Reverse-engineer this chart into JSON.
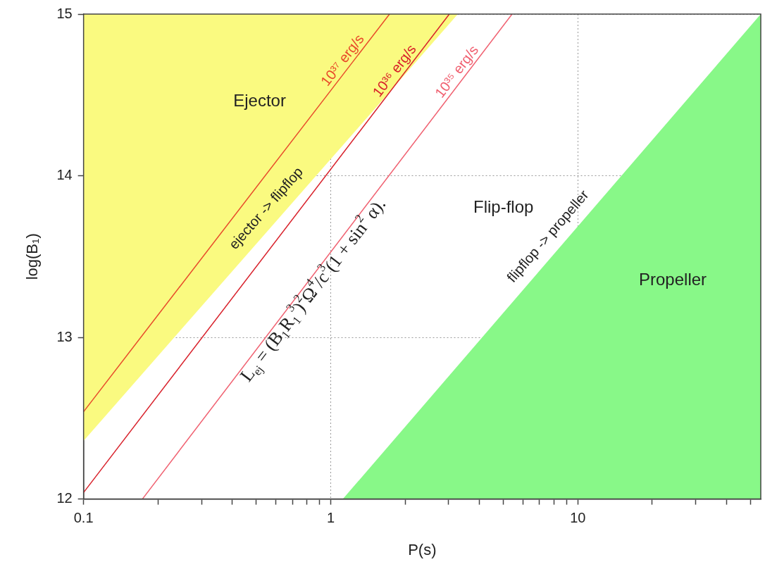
{
  "chart_data": {
    "type": "line",
    "xlabel": "P(s)",
    "ylabel": "log(B₁)",
    "log": "x",
    "grid": true,
    "legend": false,
    "xlim": [
      0.1,
      55
    ],
    "ylim": [
      12,
      15
    ],
    "xticks": [
      0.1,
      {
        "value": 0.2,
        "label": null
      },
      {
        "value": 0.3,
        "label": null
      },
      {
        "value": 0.4,
        "label": null
      },
      {
        "value": 0.5,
        "label": null
      },
      {
        "value": 0.6,
        "label": null
      },
      {
        "value": 0.7,
        "label": null
      },
      {
        "value": 0.8,
        "label": null
      },
      {
        "value": 0.9,
        "label": null
      },
      1,
      {
        "value": 2,
        "label": null
      },
      {
        "value": 3,
        "label": null
      },
      {
        "value": 4,
        "label": null
      },
      {
        "value": 5,
        "label": null
      },
      {
        "value": 6,
        "label": null
      },
      {
        "value": 7,
        "label": null
      },
      {
        "value": 8,
        "label": null
      },
      {
        "value": 9,
        "label": null
      },
      10,
      {
        "value": 20,
        "label": null
      },
      {
        "value": 30,
        "label": null
      },
      {
        "value": 40,
        "label": null
      },
      {
        "value": 50,
        "label": null
      }
    ],
    "yticks": [
      12,
      13,
      14,
      15
    ],
    "series": [
      {
        "type": "area",
        "name": "ejector -> flipflop",
        "color": "#fafa80",
        "x": [
          0.1,
          0.1,
          3.27
        ],
        "values": [
          15,
          12.36,
          15
        ]
      },
      {
        "type": "area",
        "name": "flipflop -> propeller",
        "color": "#88f888",
        "x": [
          1.12,
          55,
          55
        ],
        "values": [
          12,
          15,
          12
        ]
      },
      {
        "name": "10³⁷ erg/s",
        "color": "#e84a2a",
        "x": [
          0.1,
          1.73
        ],
        "values": [
          12.54,
          15
        ]
      },
      {
        "name": "10³⁶ erg/s",
        "color": "#d8202a",
        "x": [
          0.1,
          3.02
        ],
        "values": [
          12.04,
          15
        ]
      },
      {
        "name": "10³⁵ erg/s",
        "color": "#f06070",
        "x": [
          0.173,
          5.42
        ],
        "values": [
          12,
          15
        ]
      }
    ],
    "annotations": [
      "Ejector",
      "Flip-flop",
      "Propeller",
      "L$_{ej}$ = (B$_{1}$R$_{1}$$^{3}$)$^{2}$Ω$^{4}$/c$^{3}$(1 + sin$^{2}$ α)."
    ]
  }
}
